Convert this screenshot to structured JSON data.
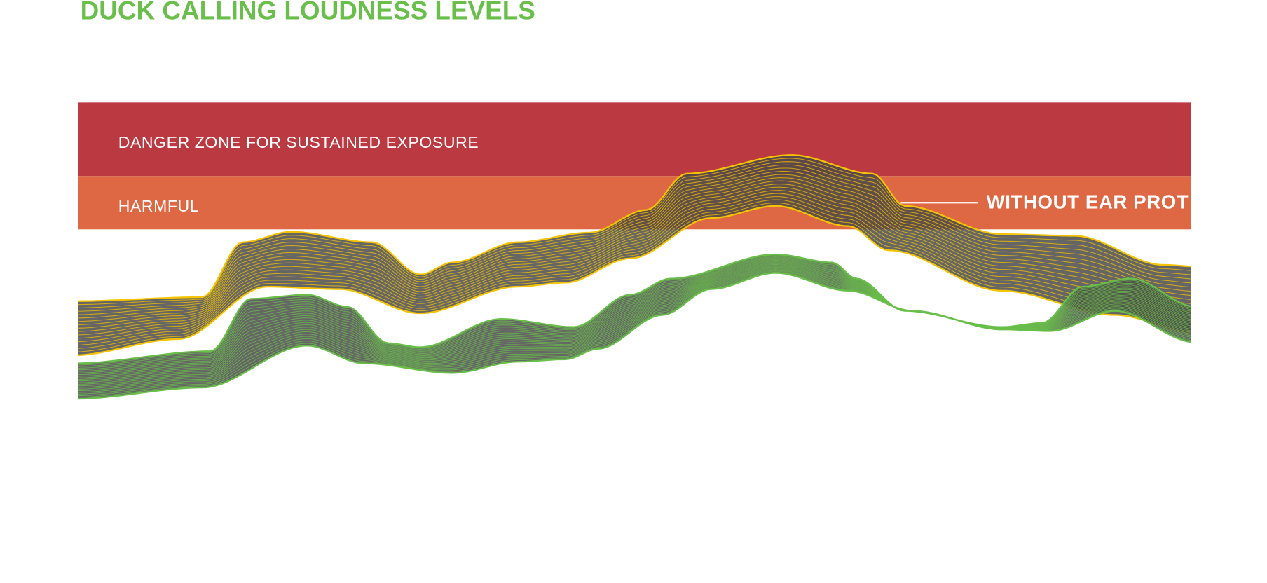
{
  "title": "DUCK CALLING LOUDNESS LEVELS",
  "zones": [
    {
      "label": "DANGER ZONE FOR SUSTAINED EXPOSURE",
      "color": "#bb3a42"
    },
    {
      "label": "HARMFUL",
      "color": "#dd6843"
    }
  ],
  "series": [
    {
      "label": "WITHOUT EAR PROT",
      "color": "#f5c400"
    },
    {
      "label": "",
      "color": "#6abf4b"
    }
  ],
  "colors": {
    "title": "#6abf4b",
    "ribbon_fill": "#4a4a4a"
  }
}
